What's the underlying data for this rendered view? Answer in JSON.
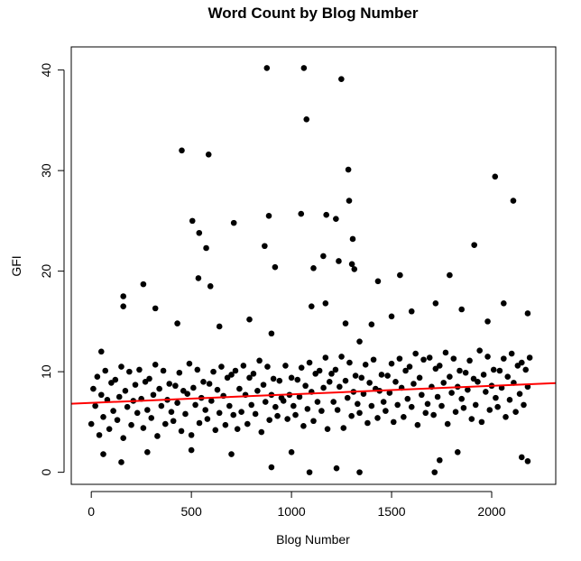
{
  "chart_data": {
    "type": "scatter",
    "title": "Word Count by Blog Number",
    "xlabel": "Blog Number",
    "ylabel": "GFI",
    "xlim": [
      -100,
      2320
    ],
    "ylim": [
      -1.2,
      42.3
    ],
    "xticks": [
      0,
      500,
      1000,
      1500,
      2000
    ],
    "yticks": [
      0,
      10,
      20,
      30,
      40
    ],
    "grid": false,
    "point_color": "#000000",
    "fit_line": {
      "intercept": 6.9,
      "slope": 0.00085,
      "color": "#ff0000"
    },
    "points": [
      [
        0,
        4.8
      ],
      [
        10,
        8.3
      ],
      [
        20,
        6.6
      ],
      [
        30,
        9.5
      ],
      [
        40,
        3.7
      ],
      [
        50,
        7.7
      ],
      [
        60,
        5.5
      ],
      [
        70,
        10.1
      ],
      [
        80,
        7.2
      ],
      [
        90,
        4.3
      ],
      [
        100,
        8.9
      ],
      [
        110,
        6.1
      ],
      [
        120,
        9.2
      ],
      [
        130,
        5.2
      ],
      [
        140,
        7.5
      ],
      [
        150,
        10.5
      ],
      [
        160,
        3.4
      ],
      [
        170,
        8.1
      ],
      [
        180,
        6.5
      ],
      [
        190,
        10.0
      ],
      [
        200,
        4.7
      ],
      [
        210,
        7.1
      ],
      [
        220,
        8.7
      ],
      [
        230,
        5.9
      ],
      [
        240,
        10.2
      ],
      [
        250,
        7.3
      ],
      [
        260,
        4.4
      ],
      [
        270,
        9.0
      ],
      [
        280,
        6.2
      ],
      [
        290,
        9.3
      ],
      [
        300,
        5.4
      ],
      [
        310,
        7.7
      ],
      [
        320,
        10.7
      ],
      [
        330,
        3.6
      ],
      [
        340,
        8.3
      ],
      [
        350,
        6.6
      ],
      [
        360,
        10.1
      ],
      [
        370,
        4.8
      ],
      [
        380,
        7.2
      ],
      [
        390,
        8.8
      ],
      [
        400,
        6.0
      ],
      [
        410,
        5.1
      ],
      [
        420,
        8.6
      ],
      [
        430,
        6.9
      ],
      [
        440,
        9.9
      ],
      [
        450,
        4.1
      ],
      [
        460,
        8.1
      ],
      [
        470,
        5.8
      ],
      [
        480,
        7.8
      ],
      [
        490,
        10.8
      ],
      [
        500,
        3.7
      ],
      [
        510,
        8.4
      ],
      [
        520,
        6.7
      ],
      [
        530,
        10.2
      ],
      [
        540,
        4.9
      ],
      [
        550,
        7.4
      ],
      [
        560,
        9.0
      ],
      [
        570,
        6.2
      ],
      [
        580,
        5.3
      ],
      [
        590,
        8.8
      ],
      [
        600,
        7.1
      ],
      [
        610,
        10.0
      ],
      [
        620,
        4.2
      ],
      [
        630,
        8.2
      ],
      [
        640,
        5.9
      ],
      [
        650,
        10.5
      ],
      [
        660,
        7.6
      ],
      [
        670,
        4.7
      ],
      [
        680,
        9.4
      ],
      [
        690,
        6.6
      ],
      [
        700,
        9.7
      ],
      [
        710,
        5.7
      ],
      [
        720,
        10.1
      ],
      [
        730,
        4.3
      ],
      [
        740,
        8.3
      ],
      [
        750,
        6.0
      ],
      [
        760,
        10.6
      ],
      [
        770,
        7.7
      ],
      [
        780,
        4.8
      ],
      [
        790,
        9.4
      ],
      [
        800,
        6.7
      ],
      [
        810,
        9.8
      ],
      [
        820,
        5.8
      ],
      [
        830,
        8.1
      ],
      [
        840,
        11.1
      ],
      [
        850,
        4.0
      ],
      [
        860,
        8.7
      ],
      [
        870,
        7.0
      ],
      [
        880,
        10.5
      ],
      [
        890,
        5.2
      ],
      [
        900,
        7.7
      ],
      [
        910,
        9.3
      ],
      [
        920,
        6.5
      ],
      [
        930,
        5.6
      ],
      [
        940,
        9.1
      ],
      [
        950,
        7.4
      ],
      [
        960,
        7.1
      ],
      [
        970,
        10.6
      ],
      [
        980,
        5.3
      ],
      [
        990,
        7.7
      ],
      [
        1000,
        9.4
      ],
      [
        1010,
        6.6
      ],
      [
        1020,
        5.7
      ],
      [
        1030,
        9.2
      ],
      [
        1040,
        7.5
      ],
      [
        1050,
        10.4
      ],
      [
        1060,
        4.6
      ],
      [
        1070,
        8.6
      ],
      [
        1080,
        6.3
      ],
      [
        1090,
        10.9
      ],
      [
        1100,
        8.0
      ],
      [
        1110,
        5.1
      ],
      [
        1120,
        9.8
      ],
      [
        1130,
        7.0
      ],
      [
        1140,
        10.1
      ],
      [
        1150,
        6.1
      ],
      [
        1160,
        8.4
      ],
      [
        1170,
        11.4
      ],
      [
        1180,
        4.3
      ],
      [
        1190,
        9.0
      ],
      [
        1200,
        9.8
      ],
      [
        1210,
        7.0
      ],
      [
        1220,
        10.2
      ],
      [
        1230,
        6.2
      ],
      [
        1240,
        8.5
      ],
      [
        1250,
        11.5
      ],
      [
        1260,
        4.4
      ],
      [
        1270,
        9.1
      ],
      [
        1280,
        7.4
      ],
      [
        1290,
        10.9
      ],
      [
        1300,
        5.6
      ],
      [
        1310,
        8.0
      ],
      [
        1320,
        9.6
      ],
      [
        1330,
        6.8
      ],
      [
        1340,
        5.9
      ],
      [
        1350,
        9.4
      ],
      [
        1360,
        7.8
      ],
      [
        1370,
        10.7
      ],
      [
        1380,
        4.9
      ],
      [
        1390,
        8.9
      ],
      [
        1400,
        6.6
      ],
      [
        1410,
        11.2
      ],
      [
        1420,
        8.3
      ],
      [
        1430,
        5.4
      ],
      [
        1440,
        8.1
      ],
      [
        1450,
        9.7
      ],
      [
        1460,
        7.0
      ],
      [
        1470,
        6.1
      ],
      [
        1480,
        9.6
      ],
      [
        1490,
        7.9
      ],
      [
        1500,
        10.8
      ],
      [
        1510,
        5.0
      ],
      [
        1520,
        9.0
      ],
      [
        1530,
        6.7
      ],
      [
        1540,
        11.3
      ],
      [
        1550,
        8.4
      ],
      [
        1560,
        5.5
      ],
      [
        1570,
        10.1
      ],
      [
        1580,
        7.3
      ],
      [
        1590,
        10.5
      ],
      [
        1600,
        6.5
      ],
      [
        1610,
        8.8
      ],
      [
        1620,
        11.8
      ],
      [
        1630,
        4.7
      ],
      [
        1640,
        9.4
      ],
      [
        1650,
        7.7
      ],
      [
        1660,
        11.2
      ],
      [
        1670,
        5.9
      ],
      [
        1680,
        6.8
      ],
      [
        1690,
        11.4
      ],
      [
        1700,
        8.5
      ],
      [
        1710,
        5.7
      ],
      [
        1720,
        10.3
      ],
      [
        1730,
        7.5
      ],
      [
        1740,
        10.6
      ],
      [
        1750,
        6.6
      ],
      [
        1760,
        8.9
      ],
      [
        1770,
        11.9
      ],
      [
        1780,
        4.8
      ],
      [
        1790,
        9.5
      ],
      [
        1800,
        7.9
      ],
      [
        1810,
        11.3
      ],
      [
        1820,
        6.0
      ],
      [
        1830,
        8.5
      ],
      [
        1840,
        10.1
      ],
      [
        1850,
        7.3
      ],
      [
        1860,
        6.4
      ],
      [
        1870,
        9.9
      ],
      [
        1880,
        8.2
      ],
      [
        1890,
        11.1
      ],
      [
        1900,
        5.3
      ],
      [
        1910,
        9.3
      ],
      [
        1920,
        6.7
      ],
      [
        1930,
        9.0
      ],
      [
        1940,
        12.1
      ],
      [
        1950,
        5.0
      ],
      [
        1960,
        9.7
      ],
      [
        1970,
        8.0
      ],
      [
        1980,
        11.5
      ],
      [
        1990,
        6.2
      ],
      [
        2000,
        8.6
      ],
      [
        2010,
        10.2
      ],
      [
        2020,
        7.4
      ],
      [
        2030,
        6.5
      ],
      [
        2040,
        10.1
      ],
      [
        2050,
        8.4
      ],
      [
        2060,
        11.3
      ],
      [
        2070,
        5.5
      ],
      [
        2080,
        9.5
      ],
      [
        2090,
        7.2
      ],
      [
        2100,
        11.8
      ],
      [
        2110,
        8.9
      ],
      [
        2120,
        6.0
      ],
      [
        2130,
        10.6
      ],
      [
        2140,
        7.8
      ],
      [
        2150,
        10.9
      ],
      [
        2160,
        6.7
      ],
      [
        2170,
        10.2
      ],
      [
        2180,
        8.5
      ],
      [
        2190,
        11.4
      ],
      [
        150,
        1.0
      ],
      [
        60,
        1.8
      ],
      [
        160,
        16.5
      ],
      [
        160,
        17.5
      ],
      [
        320,
        16.3
      ],
      [
        700,
        1.8
      ],
      [
        900,
        0.5
      ],
      [
        1090,
        0.0
      ],
      [
        1225,
        0.4
      ],
      [
        1340,
        0.0
      ],
      [
        1715,
        0.0
      ],
      [
        1740,
        1.2
      ],
      [
        2180,
        1.1
      ],
      [
        2150,
        1.5
      ],
      [
        1830,
        2.0
      ],
      [
        1000,
        2.0
      ],
      [
        500,
        2.2
      ],
      [
        280,
        2.0
      ],
      [
        1500,
        15.5
      ],
      [
        1600,
        16.0
      ],
      [
        1720,
        16.8
      ],
      [
        2060,
        16.8
      ],
      [
        2180,
        15.8
      ],
      [
        1850,
        16.2
      ],
      [
        790,
        15.2
      ],
      [
        1170,
        16.8
      ],
      [
        1100,
        16.5
      ],
      [
        1270,
        14.8
      ],
      [
        1400,
        14.7
      ],
      [
        900,
        13.8
      ],
      [
        1980,
        15.0
      ],
      [
        640,
        14.5
      ],
      [
        50,
        12.0
      ],
      [
        430,
        14.8
      ],
      [
        1340,
        13.0
      ],
      [
        877,
        40.2
      ],
      [
        1062,
        40.2
      ],
      [
        1249,
        39.1
      ],
      [
        1075,
        35.1
      ],
      [
        452,
        32.0
      ],
      [
        586,
        31.6
      ],
      [
        1284,
        30.1
      ],
      [
        2017,
        29.4
      ],
      [
        1288,
        27.0
      ],
      [
        2108,
        27.0
      ],
      [
        505,
        25.0
      ],
      [
        712,
        24.8
      ],
      [
        887,
        25.5
      ],
      [
        1048,
        25.7
      ],
      [
        1174,
        25.6
      ],
      [
        1222,
        25.2
      ],
      [
        539,
        23.8
      ],
      [
        574,
        22.3
      ],
      [
        866,
        22.5
      ],
      [
        1306,
        23.2
      ],
      [
        1913,
        22.6
      ],
      [
        1159,
        21.5
      ],
      [
        1236,
        21.0
      ],
      [
        1302,
        20.7
      ],
      [
        1314,
        20.2
      ],
      [
        918,
        20.4
      ],
      [
        1110,
        20.3
      ],
      [
        1542,
        19.6
      ],
      [
        1790,
        19.6
      ],
      [
        1432,
        19.0
      ],
      [
        535,
        19.3
      ],
      [
        260,
        18.7
      ],
      [
        595,
        18.5
      ]
    ]
  }
}
